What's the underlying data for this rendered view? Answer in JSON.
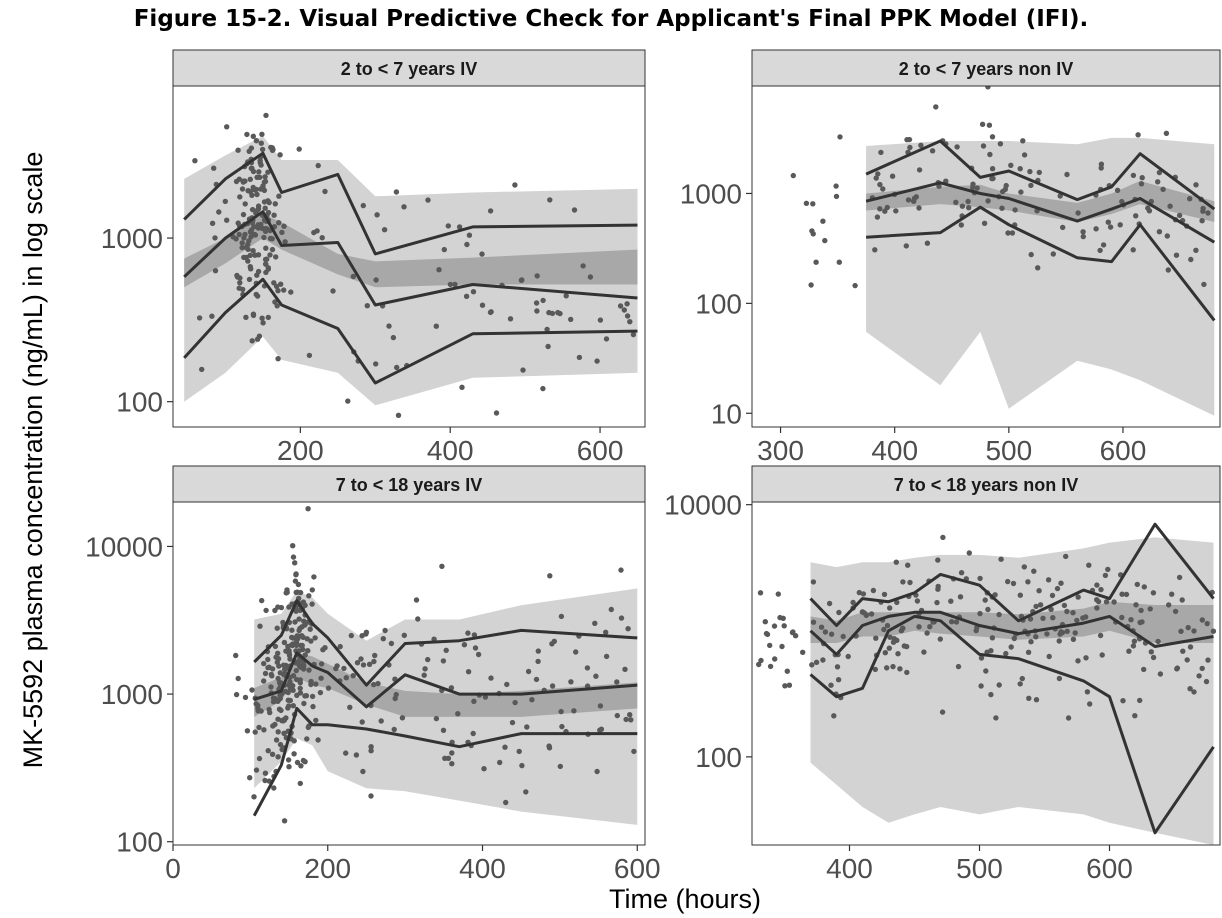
{
  "figure_title": "Figure 15-2. Visual Predictive Check for Applicant's Final PPK Model (IFI).",
  "colors": {
    "outer_band": "#d3d3d3",
    "inner_band": "#a8a8a8",
    "line": "#333333",
    "points": "#595959",
    "strip": "#d9d9d9"
  },
  "chart_data": {
    "type": "scatter",
    "xlabel": "Time (hours)",
    "ylabel": "MK-5592 plasma concentration (ng/mL) in log scale",
    "yscale": "log",
    "panels": [
      {
        "title": "2 to < 7 years IV",
        "xlim": [
          30,
          660
        ],
        "ylim": [
          70,
          8500
        ],
        "xticks": [
          200,
          400,
          600
        ],
        "xtick_labels": [
          "200",
          "400",
          "600"
        ],
        "yticks": [
          100,
          1000
        ],
        "ytick_labels": [
          "100",
          "1000"
        ],
        "x": [
          45,
          100,
          150,
          175,
          250,
          300,
          430,
          650
        ],
        "p95": [
          1300,
          2300,
          3300,
          1900,
          2450,
          800,
          1170,
          1200
        ],
        "p50": [
          580,
          1000,
          1450,
          900,
          940,
          390,
          520,
          430
        ],
        "p05": [
          185,
          350,
          560,
          390,
          280,
          130,
          260,
          270
        ],
        "band_p95": [
          [
            1600,
            2300
          ],
          [
            2000,
            3200
          ],
          [
            2600,
            4200
          ],
          [
            1800,
            3000
          ],
          [
            1800,
            3000
          ],
          [
            1100,
            1800
          ],
          [
            1100,
            1900
          ],
          [
            1000,
            2000
          ]
        ],
        "band_p50": [
          [
            500,
            750
          ],
          [
            700,
            1000
          ],
          [
            1000,
            1400
          ],
          [
            850,
            1250
          ],
          [
            600,
            800
          ],
          [
            500,
            720
          ],
          [
            520,
            760
          ],
          [
            520,
            850
          ]
        ],
        "band_p05": [
          [
            100,
            200
          ],
          [
            150,
            280
          ],
          [
            250,
            420
          ],
          [
            180,
            330
          ],
          [
            150,
            280
          ],
          [
            95,
            160
          ],
          [
            140,
            260
          ],
          [
            150,
            300
          ]
        ]
      },
      {
        "title": "2 to < 7 years non IV",
        "xlim": [
          275,
          685
        ],
        "ylim": [
          7.5,
          9500
        ],
        "xticks": [
          300,
          400,
          500,
          600
        ],
        "xtick_labels": [
          "300",
          "400",
          "500",
          "600"
        ],
        "yticks": [
          10,
          100,
          1000
        ],
        "ytick_labels": [
          "10",
          "100",
          "1000"
        ],
        "x": [
          375,
          440,
          475,
          500,
          560,
          590,
          615,
          680
        ],
        "p95": [
          1500,
          3000,
          1400,
          1600,
          880,
          1150,
          2300,
          720
        ],
        "p50": [
          850,
          1250,
          1000,
          900,
          560,
          720,
          900,
          360
        ],
        "p05": [
          400,
          440,
          750,
          520,
          260,
          240,
          520,
          70
        ],
        "band_p95": [
          [
            1700,
            2700
          ],
          [
            1800,
            3000
          ],
          [
            1600,
            3000
          ],
          [
            1500,
            3000
          ],
          [
            1500,
            2800
          ],
          [
            1500,
            3200
          ],
          [
            1500,
            3200
          ],
          [
            1200,
            2800
          ]
        ],
        "band_p50": [
          [
            700,
            1000
          ],
          [
            800,
            1150
          ],
          [
            750,
            1200
          ],
          [
            700,
            1000
          ],
          [
            550,
            820
          ],
          [
            650,
            1000
          ],
          [
            800,
            1300
          ],
          [
            550,
            850
          ]
        ],
        "band_p05": [
          [
            55,
            280
          ],
          [
            18,
            300
          ],
          [
            55,
            400
          ],
          [
            11,
            120
          ],
          [
            30,
            350
          ],
          [
            25,
            220
          ],
          [
            20,
            180
          ],
          [
            9.5,
            100
          ]
        ]
      },
      {
        "title": "7 to < 18 years IV",
        "xlim": [
          0,
          610
        ],
        "ylim": [
          95,
          20000
        ],
        "xticks": [
          0,
          200,
          400,
          600
        ],
        "xtick_labels": [
          "0",
          "200",
          "400",
          "600"
        ],
        "yticks": [
          100,
          1000,
          10000
        ],
        "ytick_labels": [
          "100",
          "1000",
          "10000"
        ],
        "x": [
          105,
          140,
          160,
          180,
          200,
          250,
          300,
          370,
          450,
          600
        ],
        "p95": [
          1650,
          2500,
          4300,
          3000,
          2400,
          1150,
          2200,
          2300,
          2700,
          2400
        ],
        "p50": [
          920,
          1050,
          1900,
          1550,
          1400,
          820,
          1350,
          1000,
          1000,
          1150
        ],
        "p05": [
          150,
          330,
          800,
          620,
          620,
          580,
          520,
          440,
          540,
          540
        ],
        "band_p95": [
          [
            1000,
            3200
          ],
          [
            1400,
            3500
          ],
          [
            2200,
            5000
          ],
          [
            1900,
            4500
          ],
          [
            1700,
            3500
          ],
          [
            1000,
            2300
          ],
          [
            1200,
            3200
          ],
          [
            1000,
            3200
          ],
          [
            800,
            4000
          ],
          [
            700,
            5200
          ]
        ],
        "band_p50": [
          [
            700,
            1100
          ],
          [
            900,
            1300
          ],
          [
            1300,
            1900
          ],
          [
            1150,
            1800
          ],
          [
            1100,
            1600
          ],
          [
            850,
            1200
          ],
          [
            700,
            1050
          ],
          [
            700,
            1000
          ],
          [
            700,
            1050
          ],
          [
            800,
            1200
          ]
        ],
        "band_p05": [
          [
            230,
            450
          ],
          [
            350,
            600
          ],
          [
            500,
            850
          ],
          [
            450,
            700
          ],
          [
            300,
            550
          ],
          [
            230,
            400
          ],
          [
            220,
            380
          ],
          [
            190,
            300
          ],
          [
            160,
            280
          ],
          [
            130,
            260
          ]
        ]
      },
      {
        "title": "7 to < 18 years non IV",
        "xlim": [
          325,
          685
        ],
        "ylim": [
          20,
          10500
        ],
        "xticks": [
          400,
          500,
          600
        ],
        "xtick_labels": [
          "400",
          "500",
          "600"
        ],
        "yticks": [
          100,
          10000
        ],
        "ytick_labels": [
          "100",
          "10000"
        ],
        "x": [
          370,
          390,
          410,
          430,
          450,
          470,
          500,
          530,
          580,
          600,
          635,
          680
        ],
        "p95": [
          1800,
          1100,
          1800,
          1700,
          2000,
          2800,
          2300,
          1200,
          2100,
          1800,
          7000,
          1800
        ],
        "p50": [
          1000,
          650,
          1100,
          1300,
          1400,
          1400,
          1100,
          950,
          1150,
          1300,
          750,
          900
        ],
        "p05": [
          450,
          300,
          350,
          1000,
          1300,
          1200,
          650,
          600,
          400,
          300,
          25,
          120
        ],
        "band_p95": [
          [
            3000,
            3500
          ],
          [
            2500,
            3200
          ],
          [
            2500,
            3500
          ],
          [
            2600,
            3500
          ],
          [
            2800,
            3800
          ],
          [
            3000,
            4000
          ],
          [
            3000,
            4000
          ],
          [
            2800,
            3800
          ],
          [
            3000,
            4500
          ],
          [
            3000,
            5000
          ],
          [
            3500,
            5500
          ],
          [
            3000,
            5000
          ]
        ],
        "band_p50": [
          [
            800,
            1300
          ],
          [
            800,
            1200
          ],
          [
            900,
            1400
          ],
          [
            900,
            1400
          ],
          [
            1000,
            1400
          ],
          [
            950,
            1400
          ],
          [
            900,
            1400
          ],
          [
            850,
            1350
          ],
          [
            900,
            1500
          ],
          [
            1000,
            1700
          ],
          [
            800,
            1600
          ],
          [
            800,
            1600
          ]
        ],
        "band_p05": [
          [
            90,
            350
          ],
          [
            60,
            300
          ],
          [
            40,
            250
          ],
          [
            30,
            200
          ],
          [
            35,
            250
          ],
          [
            40,
            300
          ],
          [
            35,
            280
          ],
          [
            40,
            250
          ],
          [
            35,
            250
          ],
          [
            30,
            180
          ],
          [
            25,
            160
          ],
          [
            20,
            150
          ]
        ]
      }
    ]
  }
}
